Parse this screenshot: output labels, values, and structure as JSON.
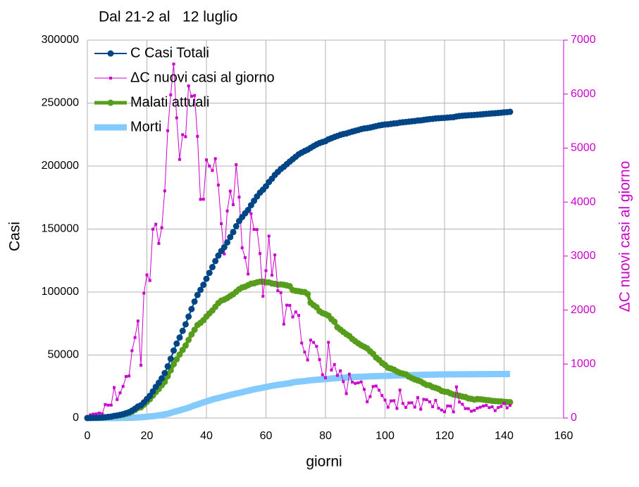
{
  "chart_data": {
    "type": "line",
    "title": "Dal 21-2 al   12 luglio",
    "xlabel": "giorni",
    "ylabel": "Casi",
    "y2label": "ΔC  nuovi casi al giorno",
    "x": [
      0,
      1,
      2,
      3,
      4,
      5,
      6,
      7,
      8,
      9,
      10,
      11,
      12,
      13,
      14,
      15,
      16,
      17,
      18,
      19,
      20,
      21,
      22,
      23,
      24,
      25,
      26,
      27,
      28,
      29,
      30,
      31,
      32,
      33,
      34,
      35,
      36,
      37,
      38,
      39,
      40,
      41,
      42,
      43,
      44,
      45,
      46,
      47,
      48,
      49,
      50,
      51,
      52,
      53,
      54,
      55,
      56,
      57,
      58,
      59,
      60,
      61,
      62,
      63,
      64,
      65,
      66,
      67,
      68,
      69,
      70,
      71,
      72,
      73,
      74,
      75,
      76,
      77,
      78,
      79,
      80,
      81,
      82,
      83,
      84,
      85,
      86,
      87,
      88,
      89,
      90,
      91,
      92,
      93,
      94,
      95,
      96,
      97,
      98,
      99,
      100,
      101,
      102,
      103,
      104,
      105,
      106,
      107,
      108,
      109,
      110,
      111,
      112,
      113,
      114,
      115,
      116,
      117,
      118,
      119,
      120,
      121,
      122,
      123,
      124,
      125,
      126,
      127,
      128,
      129,
      130,
      131,
      132,
      133,
      134,
      135,
      136,
      137,
      138,
      139,
      140,
      141,
      142
    ],
    "xlim": [
      0,
      160
    ],
    "xticks": [
      0,
      20,
      40,
      60,
      80,
      100,
      120,
      140,
      160
    ],
    "ylim": [
      0,
      300000
    ],
    "yticks": [
      0,
      50000,
      100000,
      150000,
      200000,
      250000,
      300000
    ],
    "y2lim": [
      0,
      7000
    ],
    "y2ticks": [
      0,
      1000,
      2000,
      3000,
      4000,
      5000,
      6000,
      7000
    ],
    "grid": true,
    "legend": "upper left",
    "y2color": "#cc00cc",
    "series": [
      {
        "name": "C Casi Totali",
        "color": "#004586",
        "marker": "circle",
        "line_width": 2,
        "values": [
          20,
          79,
          152,
          229,
          322,
          400,
          650,
          888,
          1128,
          1694,
          2036,
          2502,
          3089,
          3858,
          4636,
          5883,
          7375,
          9172,
          10149,
          12462,
          15113,
          17660,
          21157,
          24747,
          27980,
          31506,
          35713,
          41035,
          47021,
          53578,
          59138,
          63927,
          69176,
          74386,
          80539,
          86498,
          92472,
          97689,
          101739,
          105792,
          110574,
          115242,
          119827,
          124632,
          128948,
          132547,
          135586,
          139422,
          143626,
          147577,
          152271,
          156363,
          159516,
          162488,
          165155,
          168941,
          172434,
          175925,
          178972,
          181228,
          183957,
          187327,
          189973,
          192994,
          195351,
          197675,
          199414,
          201505,
          203591,
          205463,
          207428,
          209328,
          210717,
          211938,
          213013,
          214457,
          215858,
          217185,
          218268,
          219070,
          219814,
          221216,
          222104,
          223096,
          223885,
          224760,
          225435,
          225886,
          226699,
          227364,
          228006,
          228658,
          229327,
          229858,
          230158,
          230555,
          231139,
          231732,
          232248,
          232664,
          232997,
          233197,
          233515,
          233836,
          234013,
          234531,
          234801,
          234998,
          235278,
          235561,
          235763,
          236142,
          236305,
          236651,
          236989,
          237290,
          237500,
          237828,
          238011,
          238159,
          238275,
          238499,
          238720,
          238833,
          239410,
          239706,
          239961,
          240136,
          240310,
          240436,
          240578,
          240760,
          240961,
          241184,
          241419,
          241611,
          241819,
          241956,
          242149,
          242363,
          242639,
          242827,
          243061
        ]
      },
      {
        "name": "ΔC nuovi casi al giorno",
        "color": "#cc00cc",
        "marker": "square",
        "line_width": 1,
        "axis": "y2",
        "values": [
          20,
          59,
          73,
          77,
          93,
          78,
          250,
          238,
          240,
          566,
          342,
          466,
          587,
          769,
          778,
          1247,
          1492,
          1797,
          977,
          2313,
          2651,
          2547,
          3497,
          3590,
          3233,
          3526,
          4207,
          5322,
          5986,
          6557,
          5560,
          4789,
          5249,
          5210,
          6153,
          5959,
          5974,
          5217,
          4050,
          4053,
          4782,
          4668,
          4585,
          4805,
          4316,
          3599,
          3039,
          3836,
          4204,
          3951,
          4694,
          4092,
          3153,
          2972,
          2667,
          3786,
          3493,
          3491,
          3047,
          2256,
          2729,
          3370,
          2646,
          3021,
          2357,
          2324,
          1739,
          2091,
          2086,
          1872,
          1965,
          1900,
          1389,
          1221,
          1075,
          1444,
          1401,
          1327,
          1083,
          802,
          744,
          1402,
          888,
          992,
          789,
          875,
          675,
          451,
          813,
          665,
          642,
          652,
          669,
          531,
          300,
          397,
          584,
          593,
          516,
          416,
          333,
          200,
          318,
          321,
          177,
          518,
          270,
          197,
          280,
          283,
          202,
          379,
          163,
          346,
          338,
          301,
          210,
          328,
          183,
          148,
          116,
          224,
          221,
          113,
          577,
          296,
          255,
          175,
          174,
          126,
          142,
          182,
          201,
          223,
          235,
          192,
          208,
          137,
          193,
          214,
          276,
          188,
          234
        ]
      },
      {
        "name": "Malati attuali",
        "color": "#579d1c",
        "marker": "circle",
        "line_width": 5,
        "values": [
          20,
          79,
          150,
          221,
          311,
          385,
          588,
          821,
          1049,
          1577,
          1835,
          2263,
          2706,
          3296,
          3916,
          5061,
          6387,
          7985,
          8514,
          10590,
          12839,
          14955,
          17750,
          20603,
          23073,
          26062,
          28710,
          33190,
          37860,
          42681,
          46638,
          50418,
          54030,
          57521,
          62013,
          66414,
          70065,
          73880,
          75528,
          77635,
          80572,
          83049,
          85388,
          88274,
          91246,
          93187,
          94067,
          95262,
          96877,
          98273,
          100269,
          102253,
          103616,
          104291,
          105418,
          106607,
          106962,
          107771,
          108257,
          108237,
          107709,
          107699,
          106848,
          106527,
          105847,
          106103,
          105813,
          105205,
          104657,
          101551,
          100943,
          100704,
          100179,
          99980,
          98467,
          91528,
          89624,
          87961,
          84842,
          83324,
          82488,
          81266,
          78457,
          76440,
          72070,
          70187,
          68351,
          66553,
          65129,
          62752,
          60960,
          59322,
          57752,
          56594,
          55300,
          52942,
          50966,
          47986,
          46175,
          43691,
          42075,
          39893,
          39297,
          38429,
          36976,
          35877,
          35262,
          34730,
          32872,
          31710,
          30637,
          29873,
          28997,
          27485,
          26274,
          25909,
          24569,
          23925,
          23101,
          21543,
          20972,
          20637,
          19573,
          18655,
          18303,
          17638,
          17015,
          16681,
          15563,
          15255,
          14621,
          15060,
          14884,
          14621,
          14242,
          14099,
          13595,
          13459,
          13303,
          13179,
          12919,
          12693,
          12581
        ]
      },
      {
        "name": "Morti",
        "color": "#83caff",
        "marker": "none",
        "line_width": 9,
        "values": [
          0,
          2,
          3,
          7,
          10,
          12,
          17,
          21,
          29,
          34,
          52,
          79,
          107,
          148,
          197,
          233,
          366,
          463,
          631,
          827,
          1016,
          1266,
          1441,
          1809,
          2158,
          2503,
          2978,
          3405,
          4032,
          4825,
          5476,
          6077,
          6820,
          7503,
          8165,
          9134,
          10023,
          10779,
          11591,
          12428,
          13155,
          13915,
          14681,
          15362,
          15887,
          16523,
          17127,
          17669,
          18279,
          18849,
          19468,
          19899,
          20465,
          21067,
          21645,
          22170,
          22745,
          23227,
          23660,
          24114,
          24648,
          25085,
          25549,
          25969,
          26384,
          26644,
          26977,
          27359,
          27682,
          28236,
          28710,
          28884,
          29079,
          29315,
          29684,
          29958,
          30201,
          30395,
          30560,
          30739,
          30911,
          31106,
          31368,
          31610,
          31763,
          31908,
          32007,
          32169,
          32330,
          32486,
          32616,
          32735,
          32785,
          32877,
          32955,
          33072,
          33142,
          33229,
          33340,
          33415,
          33475,
          33530,
          33601,
          33689,
          33774,
          33846,
          33899,
          33964,
          34043,
          34114,
          34167,
          34223,
          34301,
          34345,
          34371,
          34405,
          34448,
          34514,
          34561,
          34610,
          34634,
          34657,
          34675,
          34644,
          34678,
          34708,
          34716,
          34738,
          34744,
          34767,
          34788,
          34818,
          34833,
          34854,
          34869,
          34861,
          34869,
          34899,
          34914,
          34926,
          34938,
          34945,
          34954
        ]
      }
    ]
  }
}
